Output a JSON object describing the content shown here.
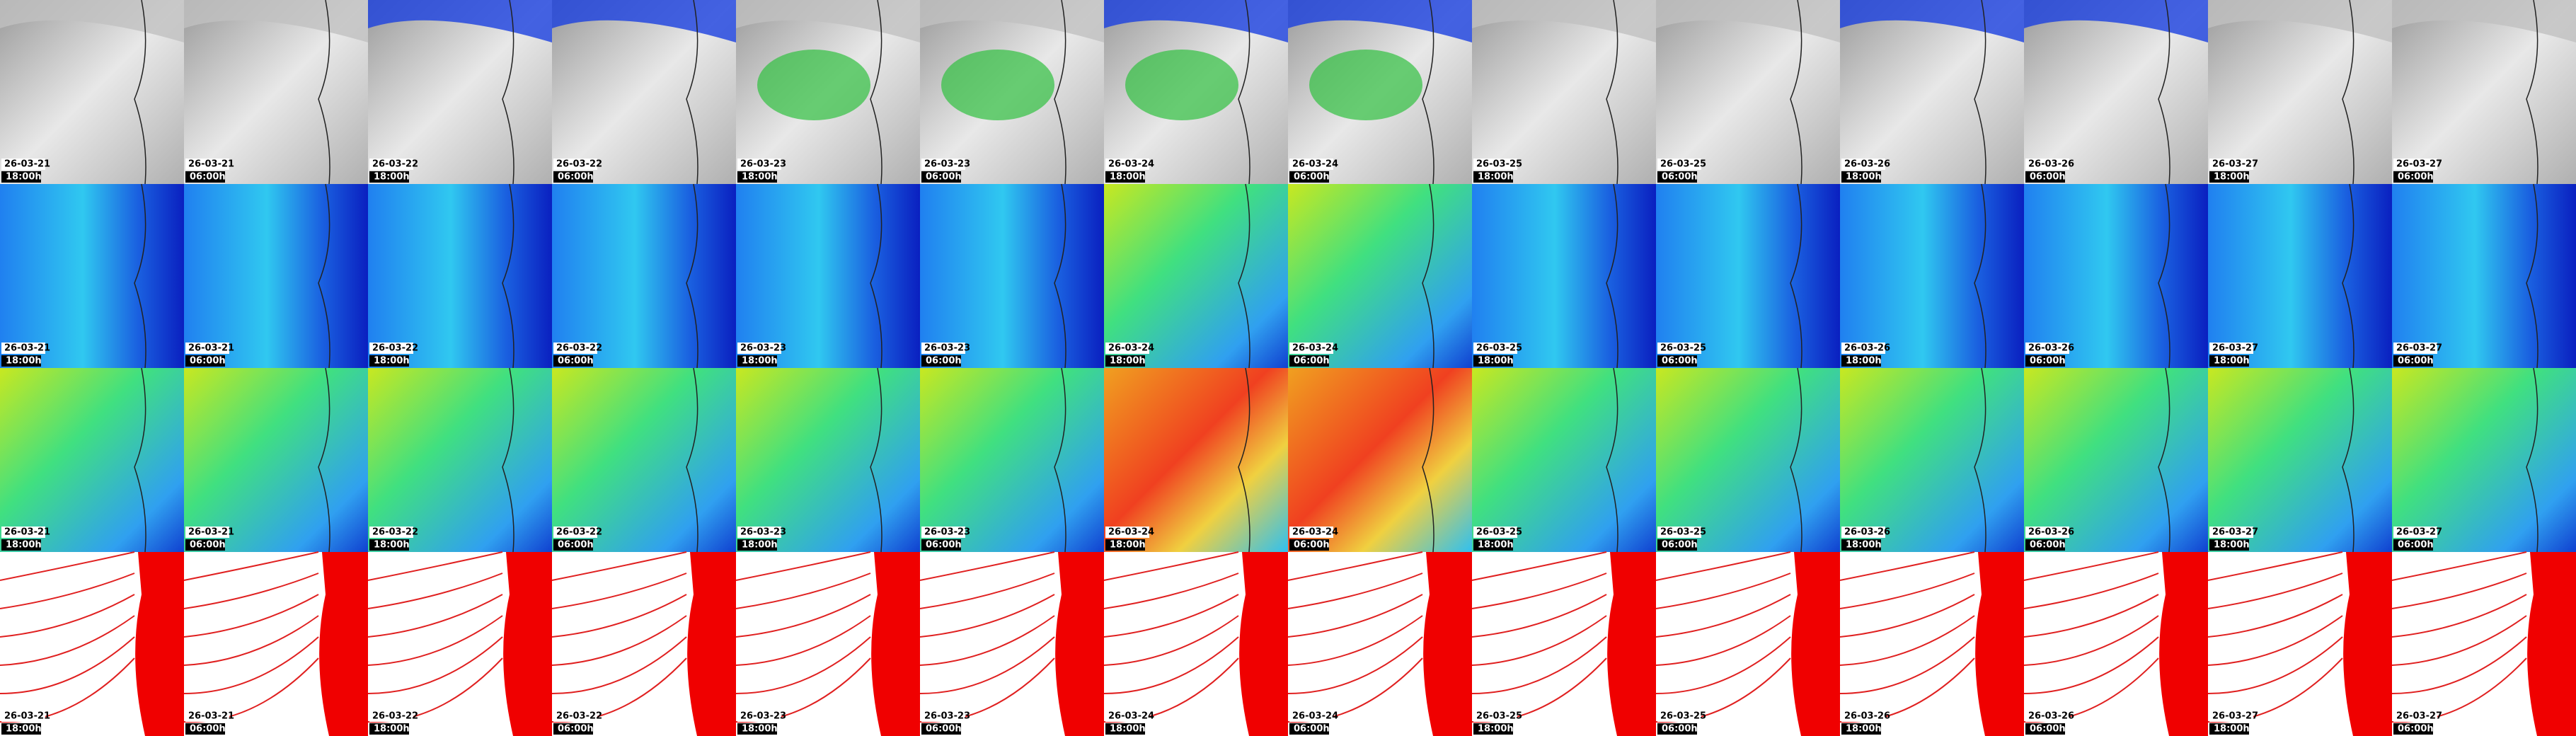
{
  "columns": [
    {
      "date": "26-03-21",
      "time": "18:00h"
    },
    {
      "date": "26-03-21",
      "time": "06:00h"
    },
    {
      "date": "26-03-22",
      "time": "18:00h"
    },
    {
      "date": "26-03-22",
      "time": "06:00h"
    },
    {
      "date": "26-03-23",
      "time": "18:00h"
    },
    {
      "date": "26-03-23",
      "time": "06:00h"
    },
    {
      "date": "26-03-24",
      "time": "18:00h"
    },
    {
      "date": "26-03-24",
      "time": "06:00h"
    },
    {
      "date": "26-03-25",
      "time": "18:00h"
    },
    {
      "date": "26-03-25",
      "time": "06:00h"
    },
    {
      "date": "26-03-26",
      "time": "18:00h"
    },
    {
      "date": "26-03-26",
      "time": "06:00h"
    },
    {
      "date": "26-03-27",
      "time": "18:00h"
    },
    {
      "date": "26-03-27",
      "time": "06:00h"
    }
  ]
}
